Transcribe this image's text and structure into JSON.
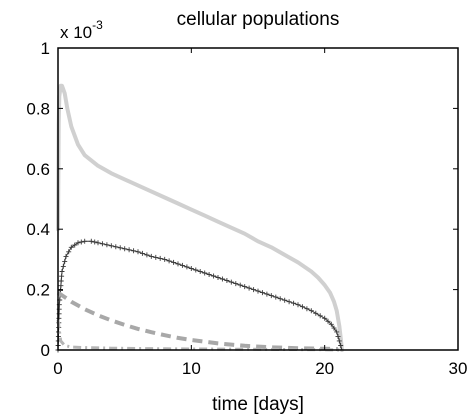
{
  "chart_data": {
    "type": "line",
    "title": "cellular populations",
    "xlabel": "time [days]",
    "ylabel": "",
    "y_multiplier": {
      "base": "x 10",
      "exponent": "-3"
    },
    "xlim": [
      0,
      30
    ],
    "ylim": [
      0,
      1
    ],
    "xticks": [
      "0",
      "10",
      "20",
      "30"
    ],
    "yticks": [
      "0",
      "0.2",
      "0.4",
      "0.6",
      "0.8",
      "1"
    ],
    "grid": false,
    "legend": "none",
    "series": [
      {
        "style": "solid-thick",
        "color": "#d0d0d0",
        "x": [
          0,
          0.05,
          0.1,
          0.2,
          0.3,
          0.5,
          0.7,
          1,
          1.5,
          2,
          3,
          4,
          5,
          6,
          7,
          8,
          9,
          10,
          11,
          12,
          13,
          14,
          15,
          16,
          17,
          18,
          19,
          19.5,
          20,
          20.4,
          20.7,
          20.9,
          21.1,
          21.2,
          21.3
        ],
        "y": [
          0.4,
          0.75,
          0.84,
          0.875,
          0.875,
          0.85,
          0.8,
          0.74,
          0.68,
          0.645,
          0.61,
          0.585,
          0.565,
          0.545,
          0.525,
          0.505,
          0.485,
          0.465,
          0.445,
          0.425,
          0.405,
          0.385,
          0.36,
          0.34,
          0.315,
          0.29,
          0.26,
          0.24,
          0.215,
          0.19,
          0.16,
          0.13,
          0.08,
          0.04,
          0.0
        ]
      },
      {
        "style": "plus-markers",
        "color": "#3a3a3a",
        "x": [
          0,
          0.1,
          0.3,
          0.6,
          1,
          1.5,
          2,
          2.5,
          3,
          4,
          5,
          6,
          7,
          8,
          9,
          10,
          11,
          12,
          13,
          14,
          15,
          16,
          17,
          18,
          19,
          20,
          20.5,
          20.9,
          21.1,
          21.3
        ],
        "y": [
          0.0,
          0.15,
          0.26,
          0.31,
          0.34,
          0.355,
          0.36,
          0.36,
          0.355,
          0.345,
          0.335,
          0.325,
          0.31,
          0.3,
          0.285,
          0.27,
          0.255,
          0.24,
          0.225,
          0.21,
          0.195,
          0.18,
          0.165,
          0.15,
          0.13,
          0.105,
          0.085,
          0.06,
          0.03,
          0.0
        ]
      },
      {
        "style": "dashed-thick",
        "color": "#a8a8a8",
        "x": [
          0,
          0.5,
          1,
          2,
          3,
          4,
          5,
          6,
          7,
          8,
          9,
          10,
          12,
          14,
          16,
          18,
          20,
          21
        ],
        "y": [
          0.19,
          0.175,
          0.16,
          0.135,
          0.115,
          0.098,
          0.083,
          0.07,
          0.059,
          0.049,
          0.04,
          0.033,
          0.022,
          0.014,
          0.009,
          0.006,
          0.004,
          0.003
        ]
      },
      {
        "style": "dashdot",
        "color": "#b5b5b5",
        "x": [
          0,
          0.2,
          0.5,
          1,
          2,
          4,
          8,
          12,
          16,
          20,
          21.3
        ],
        "y": [
          0.1,
          0.03,
          0.015,
          0.01,
          0.008,
          0.006,
          0.004,
          0.003,
          0.002,
          0.001,
          0.0
        ]
      }
    ]
  }
}
